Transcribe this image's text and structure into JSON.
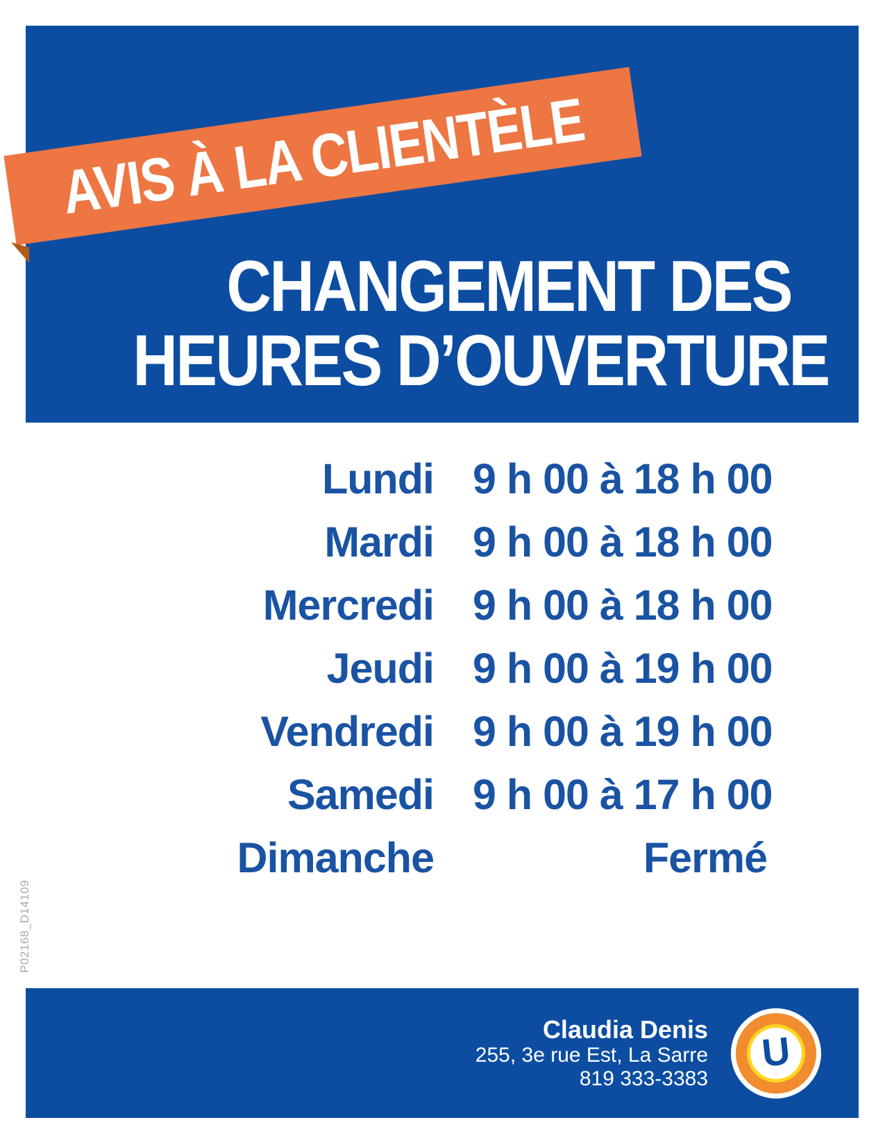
{
  "poster": {
    "ribbon_label": "AVIS À LA CLIENTÈLE",
    "title_line1": "CHANGEMENT DES",
    "title_line2": "HEURES D’OUVERTURE"
  },
  "schedule": {
    "rows": [
      {
        "day": "Lundi",
        "hours": "9 h 00 à 18 h 00"
      },
      {
        "day": "Mardi",
        "hours": "9 h 00 à 18 h 00"
      },
      {
        "day": "Mercredi",
        "hours": "9 h 00 à 18 h 00"
      },
      {
        "day": "Jeudi",
        "hours": "9 h 00 à 19 h 00"
      },
      {
        "day": "Vendredi",
        "hours": "9 h 00 à 19 h 00"
      },
      {
        "day": "Samedi",
        "hours": "9 h 00 à 17 h 00"
      },
      {
        "day": "Dimanche",
        "hours": "Fermé"
      }
    ]
  },
  "footer": {
    "contact_name": "Claudia Denis",
    "address": "255, 3e rue Est, La Sarre",
    "phone": "819 333-3383",
    "logo_letter": "U"
  },
  "meta": {
    "print_code": "P02168_D14109"
  },
  "colors": {
    "panel_blue": "#0c4da2",
    "schedule_text_blue": "#1a53a3",
    "ribbon_orange": "#ed7643",
    "ribbon_fold_orange": "#b25a1b",
    "logo_ring_orange": "#f18c2f",
    "logo_ring_yellow": "#ffd41f",
    "print_code_gray": "#a7a9ac"
  }
}
